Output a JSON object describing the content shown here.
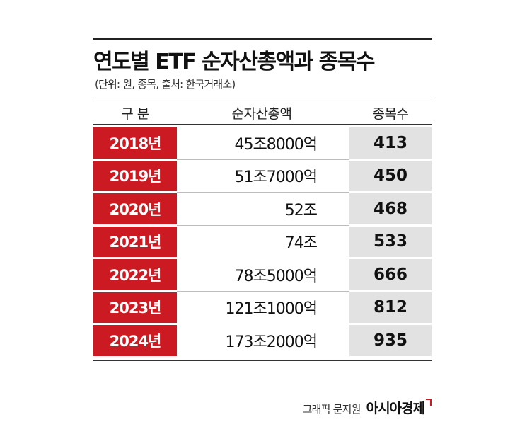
{
  "title": "연도별 ETF 순자산총액과 종목수",
  "subtitle": "(단위: 원, 종목, 출처: 한국거래소)",
  "headers": {
    "year": "구 분",
    "amount": "순자산총액",
    "count": "종목수"
  },
  "rows": [
    {
      "year": "2018년",
      "amount": "45조8000억",
      "count": "413"
    },
    {
      "year": "2019년",
      "amount": "51조7000억",
      "count": "450"
    },
    {
      "year": "2020년",
      "amount": "52조",
      "count": "468"
    },
    {
      "year": "2021년",
      "amount": "74조",
      "count": "533"
    },
    {
      "year": "2022년",
      "amount": "78조5000억",
      "count": "666"
    },
    {
      "year": "2023년",
      "amount": "121조1000억",
      "count": "812"
    },
    {
      "year": "2024년",
      "amount": "173조2000억",
      "count": "935"
    }
  ],
  "credit": "그래픽 문지원",
  "brand": "아시아경제",
  "colors": {
    "year_cell": "#cc1a22",
    "count_cell": "#e2e2e2"
  }
}
